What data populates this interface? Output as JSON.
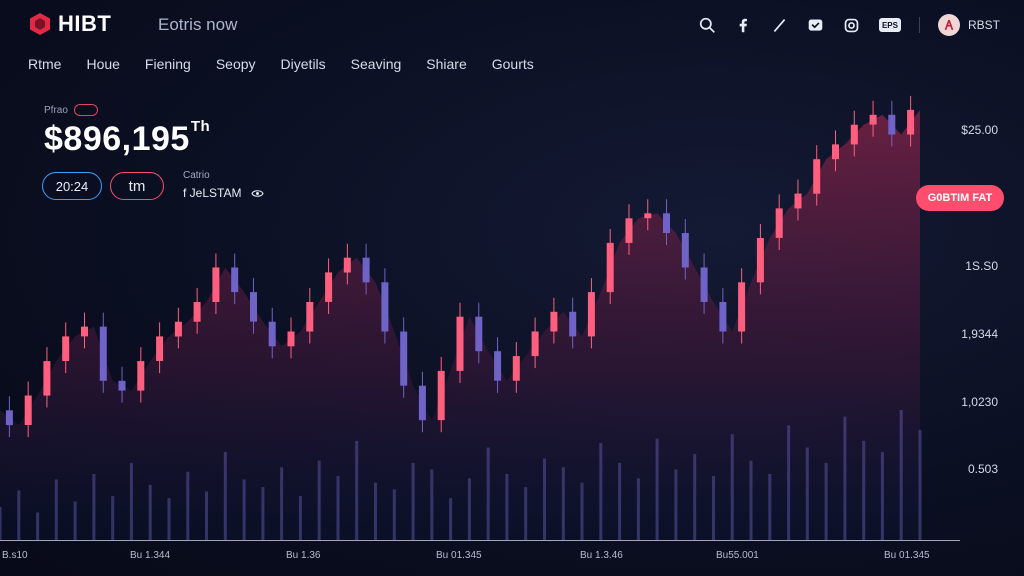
{
  "header": {
    "logo_text": "HIBT",
    "tagline": "Eotris now",
    "user_label": "RBST",
    "badge_text": "EPS"
  },
  "nav": {
    "items": [
      {
        "label": "Rtme"
      },
      {
        "label": "Houe"
      },
      {
        "label": "Fiening"
      },
      {
        "label": "Seopy"
      },
      {
        "label": "Diyetils"
      },
      {
        "label": "Seaving"
      },
      {
        "label": "Shiare"
      },
      {
        "label": "Gourts"
      }
    ]
  },
  "price": {
    "label": "Pfrao",
    "value": "$896,195",
    "unit": "Th"
  },
  "chips": {
    "time": "20:24",
    "tm": "tm"
  },
  "info": {
    "label": "Catrio",
    "value": "f JeLSTAM"
  },
  "cta": {
    "label": "G0BTIM FAT"
  },
  "colors": {
    "background": "#0b0f22",
    "accent_red": "#ff4d6d",
    "accent_blue": "#3aa0ff",
    "area_fill": "#5a1e3c",
    "candle_up": "#ff5f7e",
    "candle_down": "#6f63c8"
  },
  "chart_data": {
    "type": "line",
    "y_tick_labels": [
      "$25.00",
      "1S.S0",
      "1,9344",
      "1,0230",
      "0.503"
    ],
    "x_tick_labels": [
      "B.s10",
      "Bu 1.344",
      "Bu 1.36",
      "Bu 01.345",
      "Bu 1.3.46",
      "Bu55.001",
      "Bu 01.345"
    ],
    "series": [
      {
        "values": [
          410,
          425,
          395,
          360,
          335,
          325,
          380,
          390,
          360,
          335,
          320,
          300,
          265,
          290,
          320,
          345,
          330,
          300,
          270,
          255,
          280,
          330,
          385,
          420,
          370,
          315,
          350,
          380,
          355,
          330,
          310,
          335,
          290,
          240,
          215,
          210,
          230,
          265,
          300,
          330,
          280,
          235,
          205,
          190,
          155,
          140,
          120,
          110,
          130,
          105
        ]
      }
    ],
    "volume": [
      30,
      45,
      25,
      55,
      35,
      60,
      40,
      70,
      50,
      38,
      62,
      44,
      80,
      55,
      48,
      66,
      40,
      72,
      58,
      90,
      52,
      46,
      70,
      64,
      38,
      56,
      84,
      60,
      48,
      74,
      66,
      52,
      88,
      70,
      56,
      92,
      64,
      78,
      58,
      96,
      72,
      60,
      104,
      84,
      70,
      112,
      90,
      80,
      118,
      100
    ],
    "grid": false,
    "legend": "none"
  }
}
